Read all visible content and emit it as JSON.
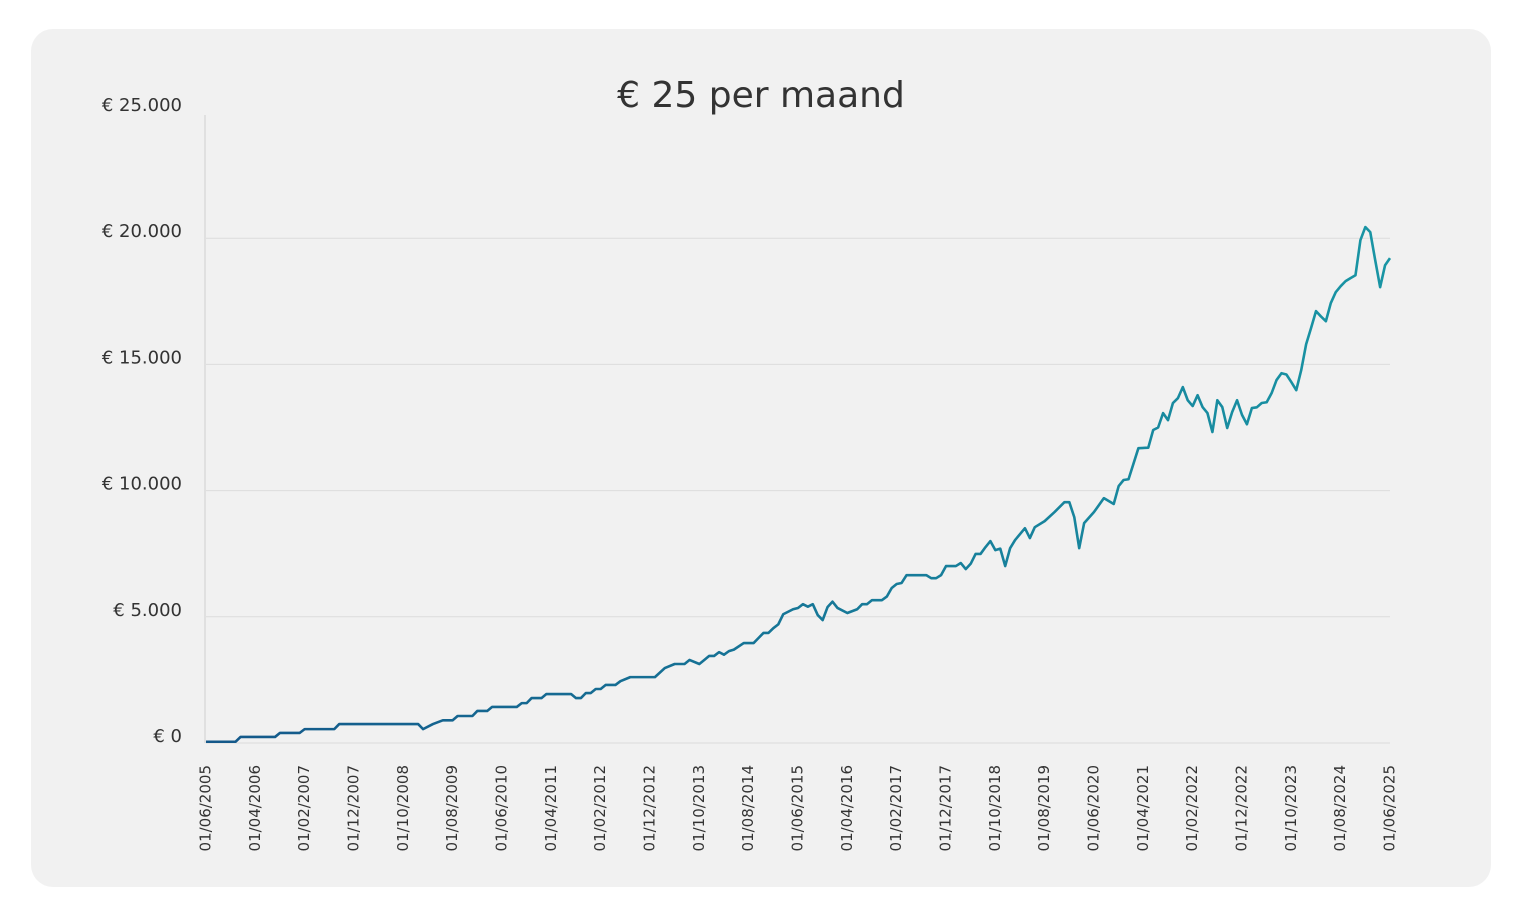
{
  "chart_data": {
    "type": "line",
    "title": "€ 25 per maand",
    "x": [
      "01/06/2005",
      "01/12/2005",
      "01/01/2006",
      "01/08/2006",
      "01/09/2006",
      "01/01/2007",
      "01/02/2007",
      "01/08/2007",
      "01/09/2007",
      "01/01/2009",
      "01/02/2009",
      "01/04/2009",
      "01/06/2009",
      "01/08/2009",
      "01/09/2009",
      "01/12/2009",
      "01/01/2010",
      "01/03/2010",
      "01/04/2010",
      "01/09/2010",
      "01/10/2010",
      "01/11/2010",
      "01/12/2010",
      "01/02/2011",
      "01/03/2011",
      "01/08/2011",
      "01/09/2011",
      "01/10/2011",
      "01/11/2011",
      "01/12/2011",
      "01/01/2012",
      "01/02/2012",
      "01/03/2012",
      "01/05/2012",
      "01/06/2012",
      "01/08/2012",
      "01/01/2013",
      "01/03/2013",
      "01/05/2013",
      "01/07/2013",
      "01/08/2013",
      "01/10/2013",
      "01/11/2013",
      "01/12/2013",
      "01/01/2014",
      "01/02/2014",
      "01/03/2014",
      "01/04/2014",
      "01/05/2014",
      "01/07/2014",
      "01/09/2014",
      "01/10/2014",
      "01/11/2014",
      "01/12/2014",
      "01/01/2015",
      "01/02/2015",
      "01/03/2015",
      "01/05/2015",
      "01/06/2015",
      "01/07/2015",
      "01/08/2015",
      "01/09/2015",
      "01/10/2015",
      "01/11/2015",
      "01/12/2015",
      "01/01/2016",
      "01/02/2016",
      "01/04/2016",
      "01/06/2016",
      "01/07/2016",
      "01/08/2016",
      "01/09/2016",
      "01/11/2016",
      "01/12/2016",
      "01/01/2017",
      "01/02/2017",
      "01/03/2017",
      "01/04/2017",
      "01/08/2017",
      "01/09/2017",
      "01/10/2017",
      "01/11/2017",
      "01/12/2017",
      "01/02/2018",
      "01/03/2018",
      "01/04/2018",
      "01/05/2018",
      "01/06/2018",
      "01/07/2018",
      "01/08/2018",
      "01/09/2018",
      "01/10/2018",
      "01/11/2018",
      "01/12/2018",
      "01/01/2019",
      "01/02/2019",
      "01/04/2019",
      "01/05/2019",
      "01/06/2019",
      "01/08/2019",
      "01/10/2019",
      "01/12/2019",
      "01/01/2020",
      "01/02/2020",
      "01/03/2020",
      "01/04/2020",
      "01/06/2020",
      "01/08/2020",
      "01/10/2020",
      "01/11/2020",
      "01/12/2020",
      "01/01/2021",
      "01/03/2021",
      "01/05/2021",
      "01/06/2021",
      "01/07/2021",
      "01/08/2021",
      "01/09/2021",
      "01/10/2021",
      "01/11/2021",
      "01/12/2021",
      "01/01/2022",
      "01/02/2022",
      "01/03/2022",
      "01/04/2022",
      "01/05/2022",
      "01/06/2022",
      "01/07/2022",
      "01/08/2022",
      "01/09/2022",
      "01/10/2022",
      "01/11/2022",
      "01/12/2022",
      "01/01/2023",
      "01/02/2023",
      "01/03/2023",
      "01/04/2023",
      "01/05/2023",
      "01/06/2023",
      "01/07/2023",
      "01/08/2023",
      "01/09/2023",
      "01/10/2023",
      "01/11/2023",
      "01/12/2023",
      "01/01/2024",
      "01/02/2024",
      "01/03/2024",
      "01/04/2024",
      "01/05/2024",
      "01/06/2024",
      "01/07/2024",
      "01/08/2024",
      "01/09/2024",
      "01/10/2024",
      "01/11/2024",
      "01/12/2024",
      "01/01/2025",
      "01/02/2025",
      "01/03/2025",
      "01/04/2025",
      "01/05/2025",
      "01/06/2025"
    ],
    "series": [
      {
        "colors": [
          "#14588a",
          "#1995a4"
        ],
        "values": [
          50,
          50,
          240,
          240,
          400,
          400,
          550,
          550,
          750,
          750,
          550,
          750,
          900,
          900,
          1070,
          1070,
          1270,
          1270,
          1430,
          1430,
          1580,
          1580,
          1780,
          1780,
          1940,
          1940,
          1780,
          1780,
          1980,
          1980,
          2140,
          2140,
          2300,
          2300,
          2450,
          2610,
          2610,
          2970,
          3130,
          3130,
          3290,
          3130,
          3290,
          3450,
          3450,
          3600,
          3500,
          3640,
          3700,
          3960,
          3960,
          4160,
          4360,
          4360,
          4550,
          4700,
          5100,
          5300,
          5350,
          5500,
          5400,
          5500,
          5070,
          4870,
          5390,
          5600,
          5350,
          5150,
          5300,
          5500,
          5500,
          5660,
          5660,
          5800,
          6140,
          6300,
          6340,
          6650,
          6650,
          6530,
          6530,
          6650,
          7010,
          7010,
          7130,
          6890,
          7100,
          7490,
          7490,
          7760,
          8000,
          7640,
          7700,
          7010,
          7720,
          8040,
          8510,
          8120,
          8550,
          8790,
          9150,
          9540,
          9540,
          8950,
          7720,
          8710,
          9150,
          9700,
          9470,
          10180,
          10420,
          10450,
          11680,
          11700,
          12400,
          12500,
          13070,
          12790,
          13470,
          13660,
          14100,
          13580,
          13350,
          13780,
          13310,
          13070,
          12320,
          13580,
          13310,
          12480,
          13110,
          13580,
          13000,
          12630,
          13270,
          13300,
          13470,
          13500,
          13860,
          14380,
          14650,
          14600,
          14300,
          13980,
          14770,
          15800,
          16440,
          17110,
          16900,
          16710,
          17430,
          17860,
          18100,
          18300,
          18420,
          18530,
          19920,
          20440,
          20240,
          19130,
          18060,
          18930,
          19210
        ]
      }
    ],
    "xlim": [
      "01/06/2005",
      "01/06/2025"
    ],
    "xticks": [
      "01/06/2005",
      "01/04/2006",
      "01/02/2007",
      "01/12/2007",
      "01/10/2008",
      "01/08/2009",
      "01/06/2010",
      "01/04/2011",
      "01/02/2012",
      "01/12/2012",
      "01/10/2013",
      "01/08/2014",
      "01/06/2015",
      "01/04/2016",
      "01/02/2017",
      "01/12/2017",
      "01/10/2018",
      "01/08/2019",
      "01/06/2020",
      "01/04/2021",
      "01/02/2022",
      "01/12/2022",
      "01/10/2023",
      "01/08/2024",
      "01/06/2025"
    ],
    "ylim": [
      0,
      25000
    ],
    "yticks": [
      {
        "value": 0,
        "label": "€ 0"
      },
      {
        "value": 5000,
        "label": "€ 5.000"
      },
      {
        "value": 10000,
        "label": "€ 10.000"
      },
      {
        "value": 15000,
        "label": "€ 15.000"
      },
      {
        "value": 20000,
        "label": "€ 20.000"
      },
      {
        "value": 25000,
        "label": "€ 25.000"
      }
    ],
    "grid": true
  }
}
